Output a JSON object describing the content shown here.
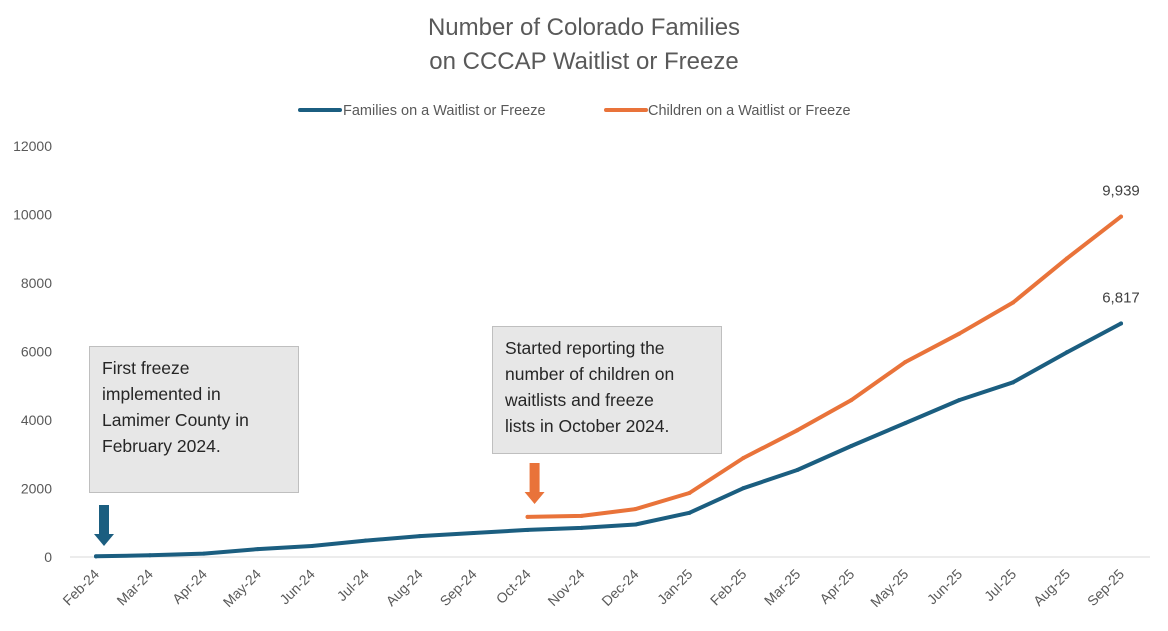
{
  "chart_data": {
    "type": "line",
    "title": [
      "Number of Colorado Families",
      "on CCCAP Waitlist or Freeze"
    ],
    "xlabel": "",
    "ylabel": "",
    "ylim": [
      0,
      12000
    ],
    "yticks": [
      0,
      2000,
      4000,
      6000,
      8000,
      10000,
      12000
    ],
    "grid": false,
    "legend_position": "top",
    "categories": [
      "Feb-24",
      "Mar-24",
      "Apr-24",
      "May-24",
      "Jun-24",
      "Jul-24",
      "Aug-24",
      "Sep-24",
      "Oct-24",
      "Nov-24",
      "Dec-24",
      "Jan-25",
      "Feb-25",
      "Mar-25",
      "Apr-25",
      "May-25",
      "Jun-25",
      "Jul-25",
      "Aug-25",
      "Sep-25"
    ],
    "series": [
      {
        "name": "Families on a Waitlist or Freeze",
        "color": "#1b5e80",
        "values": [
          20,
          50,
          100,
          230,
          320,
          480,
          610,
          700,
          790,
          850,
          950,
          1290,
          2010,
          2540,
          3240,
          3910,
          4580,
          5100,
          5980,
          6817
        ],
        "end_label": "6,817"
      },
      {
        "name": "Children on a Waitlist or Freeze",
        "color": "#e9733a",
        "values": [
          null,
          null,
          null,
          null,
          null,
          null,
          null,
          null,
          1170,
          1200,
          1400,
          1870,
          2890,
          3700,
          4580,
          5690,
          6520,
          7430,
          8720,
          9939
        ],
        "end_label": "9,939"
      }
    ],
    "annotations": [
      {
        "text": "First freeze implemented in Lamimer County in February 2024.",
        "lines": [
          "First freeze",
          "implemented in",
          "Lamimer County in",
          "February 2024."
        ],
        "category": "Feb-24",
        "arrow_color": "#1b5e80"
      },
      {
        "text": "Started reporting the number of children on waitlists and freeze lists in October 2024.",
        "lines": [
          "Started reporting the",
          "number of children on",
          "waitlists and freeze",
          "lists in October 2024."
        ],
        "category": "Oct-24",
        "arrow_color": "#e9733a"
      }
    ]
  }
}
